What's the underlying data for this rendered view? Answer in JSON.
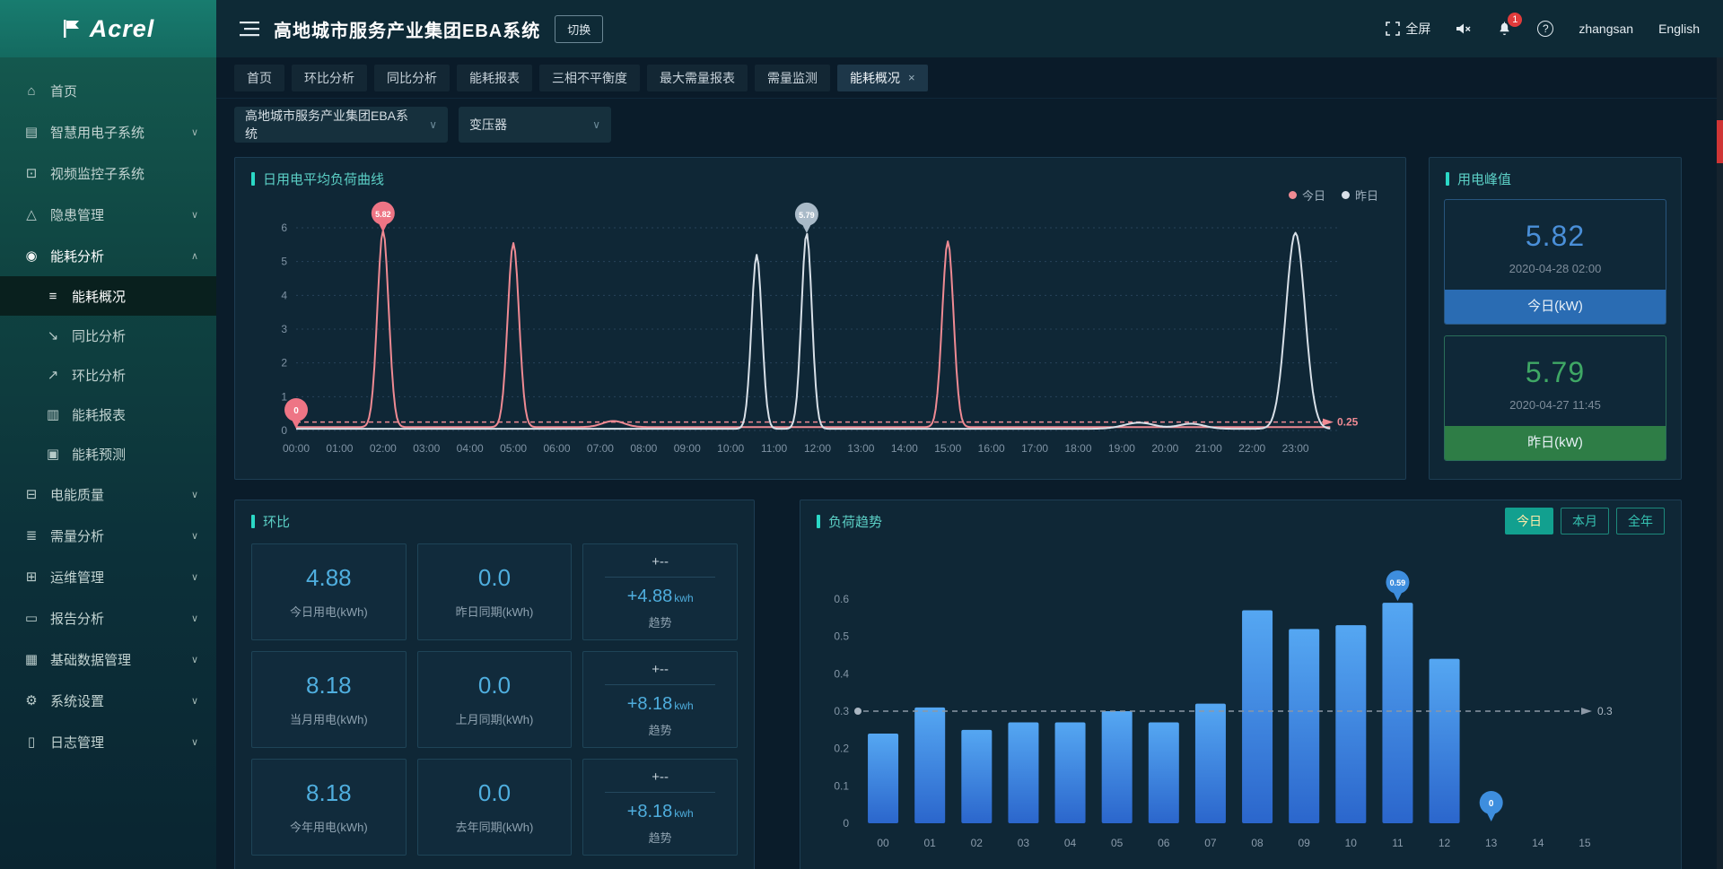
{
  "colors": {
    "accent_teal": "#2bd8c6",
    "today_line": "#ef8a93",
    "yesterday_line": "#d8e0e8",
    "today_blue": "#4a8fd8",
    "yesterday_green": "#3fa865",
    "bar_blue": "#3e8ede",
    "alert_red": "#e23b3b"
  },
  "header": {
    "logo_text": "Acrel",
    "title": "高地城市服务产业集团EBA系统",
    "switch_button": "切换",
    "fullscreen_label": "全屏",
    "notification_count": "1",
    "username": "zhangsan",
    "language": "English"
  },
  "sidebar": {
    "items": [
      {
        "name": "home",
        "label": "首页",
        "icon": "home-icon"
      },
      {
        "name": "smart-power",
        "label": "智慧用电子系统",
        "icon": "power-system-icon",
        "expandable": true
      },
      {
        "name": "video-monitor",
        "label": "视频监控子系统",
        "icon": "video-icon"
      },
      {
        "name": "hazard",
        "label": "隐患管理",
        "icon": "hazard-icon",
        "expandable": true
      },
      {
        "name": "energy-analysis",
        "label": "能耗分析",
        "icon": "energy-icon",
        "expandable": true,
        "expanded": true,
        "children": [
          {
            "name": "energy-overview",
            "label": "能耗概况",
            "icon": "overview-icon",
            "active": true
          },
          {
            "name": "yoy-analysis",
            "label": "同比分析",
            "icon": "yoy-icon"
          },
          {
            "name": "mom-analysis",
            "label": "环比分析",
            "icon": "mom-icon"
          },
          {
            "name": "energy-report",
            "label": "能耗报表",
            "icon": "report-icon"
          },
          {
            "name": "energy-forecast",
            "label": "能耗预测",
            "icon": "forecast-icon"
          }
        ]
      },
      {
        "name": "power-quality",
        "label": "电能质量",
        "icon": "quality-icon",
        "expandable": true
      },
      {
        "name": "demand-analysis",
        "label": "需量分析",
        "icon": "demand-icon",
        "expandable": true
      },
      {
        "name": "ops-management",
        "label": "运维管理",
        "icon": "ops-icon",
        "expandable": true
      },
      {
        "name": "report-analysis",
        "label": "报告分析",
        "icon": "report-analysis-icon",
        "expandable": true
      },
      {
        "name": "base-data",
        "label": "基础数据管理",
        "icon": "base-data-icon",
        "expandable": true
      },
      {
        "name": "system-settings",
        "label": "系统设置",
        "icon": "settings-icon",
        "expandable": true
      },
      {
        "name": "log-management",
        "label": "日志管理",
        "icon": "log-icon",
        "expandable": true
      }
    ]
  },
  "tabs": [
    {
      "name": "home",
      "label": "首页"
    },
    {
      "name": "mom-analysis",
      "label": "环比分析"
    },
    {
      "name": "yoy-analysis",
      "label": "同比分析"
    },
    {
      "name": "energy-report",
      "label": "能耗报表"
    },
    {
      "name": "three-phase-unbalance",
      "label": "三相不平衡度"
    },
    {
      "name": "max-demand-report",
      "label": "最大需量报表"
    },
    {
      "name": "demand-monitoring",
      "label": "需量监测"
    },
    {
      "name": "energy-overview",
      "label": "能耗概况",
      "active": true
    }
  ],
  "filters": {
    "system": "高地城市服务产业集团EBA系统",
    "device": "变压器"
  },
  "panels": {
    "load_curve": {
      "title": "日用电平均负荷曲线"
    },
    "peak": {
      "title": "用电峰值",
      "today": {
        "value": "5.82",
        "time": "2020-04-28 02:00",
        "label": "今日(kW)"
      },
      "yesterday": {
        "value": "5.79",
        "time": "2020-04-27 11:45",
        "label": "昨日(kW)"
      }
    },
    "huanbi": {
      "title": "环比",
      "cards": [
        {
          "type": "value",
          "value": "4.88",
          "label": "今日用电(kWh)"
        },
        {
          "type": "value",
          "value": "0.0",
          "label": "昨日同期(kWh)"
        },
        {
          "type": "trend",
          "top": "+--",
          "delta": "+4.88",
          "unit": "kwh",
          "label": "趋势"
        },
        {
          "type": "value",
          "value": "8.18",
          "label": "当月用电(kWh)"
        },
        {
          "type": "value",
          "value": "0.0",
          "label": "上月同期(kWh)"
        },
        {
          "type": "trend",
          "top": "+--",
          "delta": "+8.18",
          "unit": "kwh",
          "label": "趋势"
        },
        {
          "type": "value",
          "value": "8.18",
          "label": "今年用电(kWh)"
        },
        {
          "type": "value",
          "value": "0.0",
          "label": "去年同期(kWh)"
        },
        {
          "type": "trend",
          "top": "+--",
          "delta": "+8.18",
          "unit": "kwh",
          "label": "趋势"
        }
      ]
    },
    "load_trend": {
      "title": "负荷趋势",
      "buttons": [
        "今日",
        "本月",
        "全年"
      ],
      "active_index": 0
    }
  },
  "chart_data": [
    {
      "id": "load_curve",
      "type": "line",
      "title": "日用电平均负荷曲线",
      "x_ticks": [
        "00:00",
        "01:00",
        "02:00",
        "03:00",
        "04:00",
        "05:00",
        "06:00",
        "07:00",
        "08:00",
        "09:00",
        "10:00",
        "11:00",
        "12:00",
        "13:00",
        "14:00",
        "15:00",
        "16:00",
        "17:00",
        "18:00",
        "19:00",
        "20:00",
        "21:00",
        "22:00",
        "23:00"
      ],
      "x_range": [
        0,
        24
      ],
      "ylim": [
        0,
        6
      ],
      "y_ticks": [
        0,
        1,
        2,
        3,
        4,
        5,
        6
      ],
      "grid": "dotted-horizontal",
      "legend": [
        {
          "name": "今日",
          "color": "#ef8a93"
        },
        {
          "name": "昨日",
          "color": "#d8e0e8"
        }
      ],
      "reference_line": {
        "value": 0.25,
        "label": "0.25",
        "color": "#ef8a93"
      },
      "series": [
        {
          "name": "今日",
          "color": "#ef8a93",
          "baseline": 0.1,
          "spikes": [
            {
              "time": 2.0,
              "value": 5.82,
              "sigma": 0.13
            },
            {
              "time": 5.0,
              "value": 5.45,
              "sigma": 0.13
            },
            {
              "time": 7.3,
              "value": 0.18,
              "sigma": 0.25
            },
            {
              "time": 15.0,
              "value": 5.5,
              "sigma": 0.13
            }
          ]
        },
        {
          "name": "昨日",
          "color": "#d8e0e8",
          "baseline": 0.05,
          "spikes": [
            {
              "time": 10.6,
              "value": 5.15,
              "sigma": 0.12
            },
            {
              "time": 11.75,
              "value": 5.79,
              "sigma": 0.12
            },
            {
              "time": 19.4,
              "value": 0.18,
              "sigma": 0.35
            },
            {
              "time": 20.6,
              "value": 0.15,
              "sigma": 0.3
            },
            {
              "time": 23.0,
              "value": 5.8,
              "sigma": 0.22
            }
          ]
        }
      ],
      "markers": [
        {
          "label": "5.82",
          "time": 2.0,
          "value": 5.82,
          "color": "#ee7585"
        },
        {
          "label": "0",
          "time": 0.0,
          "value": 0,
          "color": "#ee7585"
        },
        {
          "label": "5.79",
          "time": 11.75,
          "value": 5.79,
          "color": "#a9bac8"
        }
      ]
    },
    {
      "id": "load_trend",
      "type": "bar",
      "title": "负荷趋势",
      "categories": [
        "00",
        "01",
        "02",
        "03",
        "04",
        "05",
        "06",
        "07",
        "08",
        "09",
        "10",
        "11",
        "12",
        "13",
        "14",
        "15"
      ],
      "values": [
        0.24,
        0.31,
        0.25,
        0.27,
        0.27,
        0.3,
        0.27,
        0.32,
        0.57,
        0.52,
        0.53,
        0.59,
        0.44,
        0,
        0,
        0
      ],
      "ylim": [
        0,
        0.6
      ],
      "y_ticks": [
        0,
        0.1,
        0.2,
        0.3,
        0.4,
        0.5,
        0.6
      ],
      "bar_gradient": [
        "#55a7f2",
        "#2b66cc"
      ],
      "reference_line": {
        "value": 0.3,
        "label": "0.3",
        "color": "#9aa7b4"
      },
      "markers": [
        {
          "label": "0.59",
          "category": "11",
          "value": 0.59,
          "color": "#3e8ede"
        },
        {
          "label": "0",
          "category": "13",
          "value": 0,
          "color": "#3e8ede"
        }
      ]
    }
  ]
}
